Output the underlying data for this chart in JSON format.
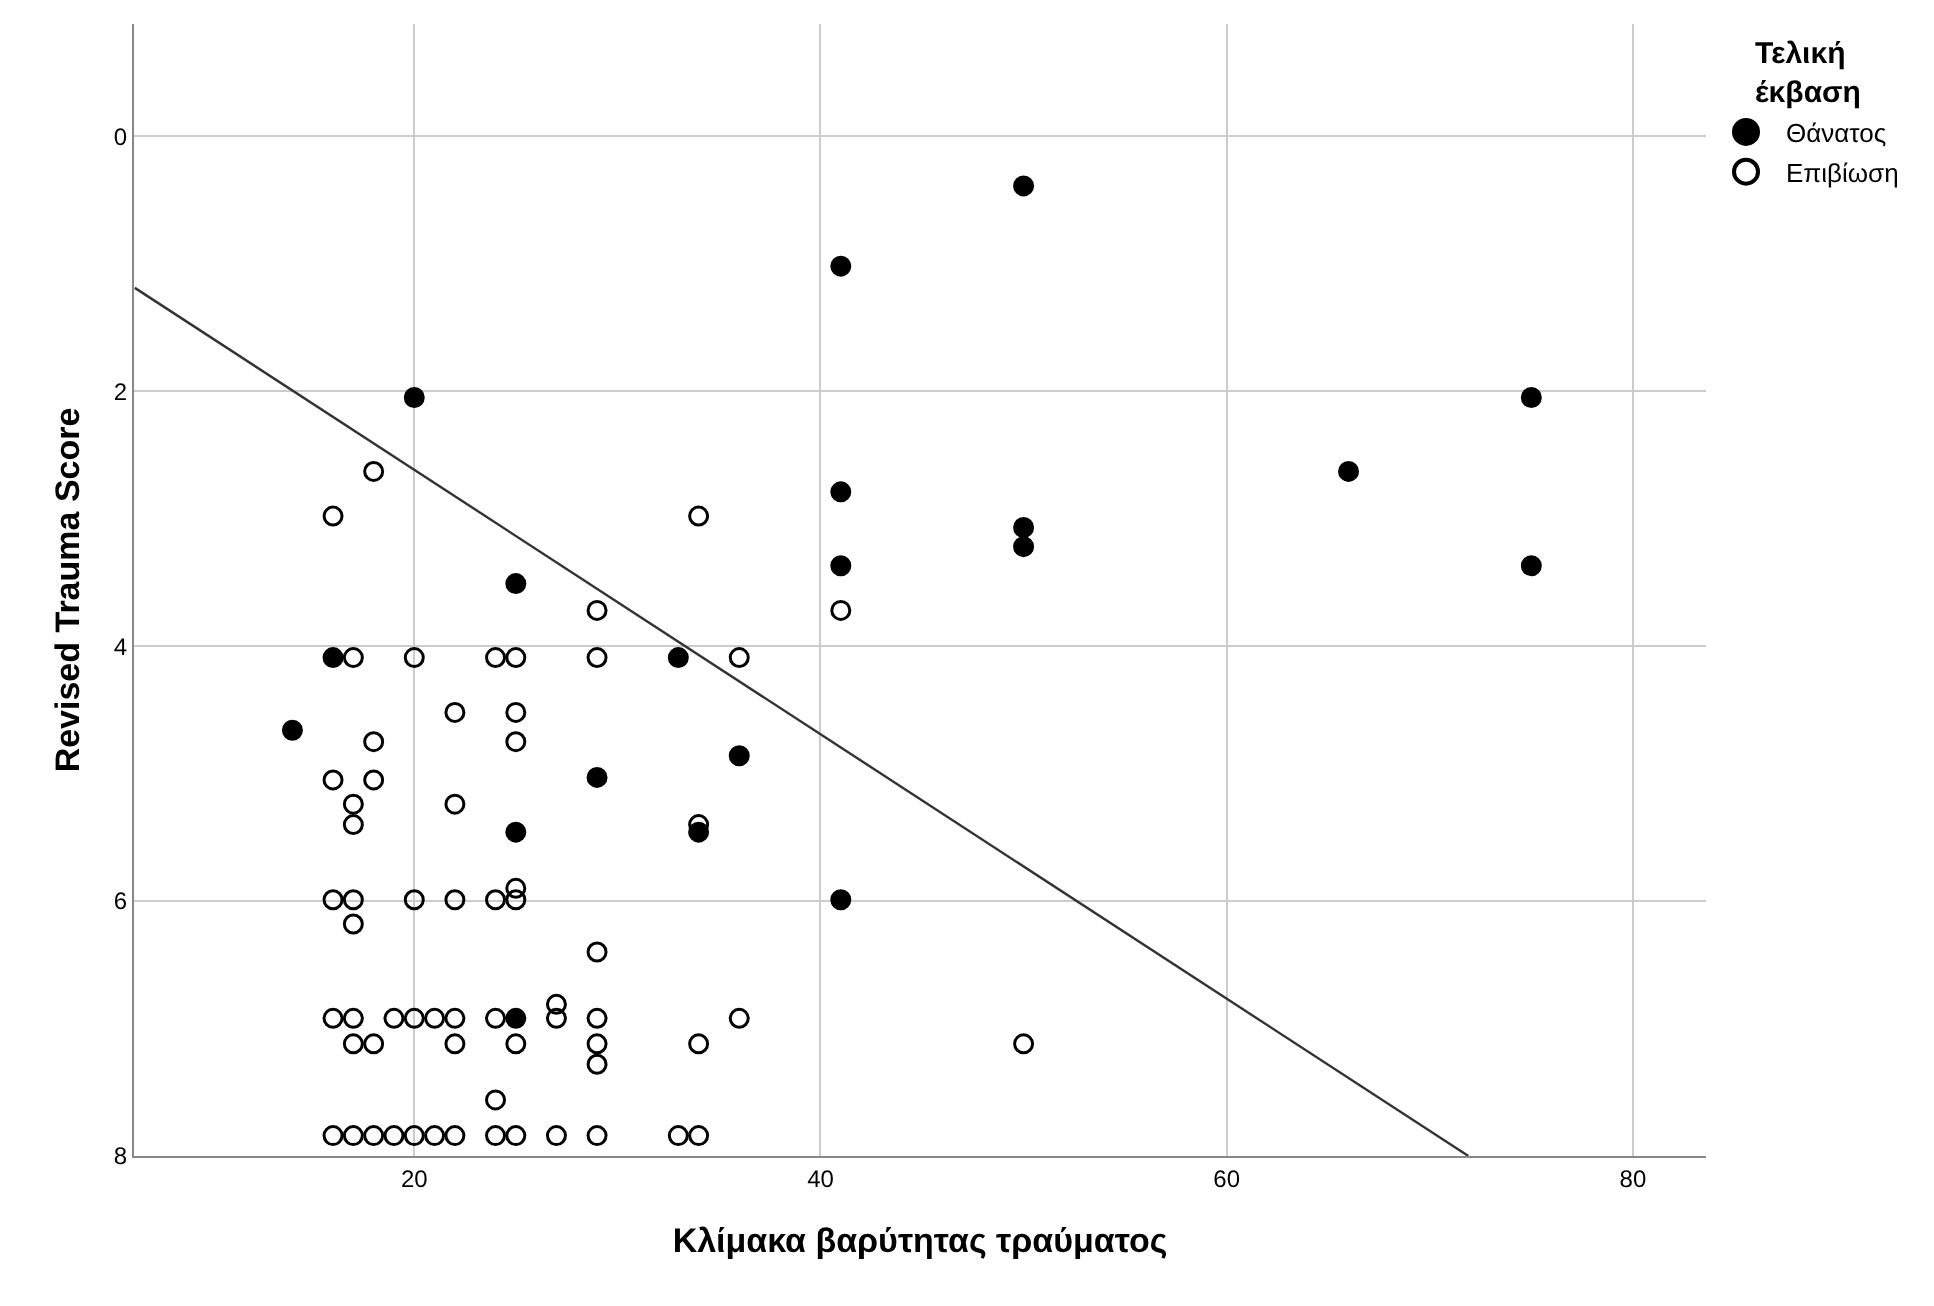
{
  "chart_data": {
    "type": "scatter",
    "xlabel": "Κλίμακα βαρύτητας τραύματος",
    "ylabel": "Revised Trauma Score",
    "legend_title": "Τελική έκβαση",
    "legend": "top right",
    "grid": true,
    "xlim": [
      6.2,
      83.6
    ],
    "xticks": [
      20,
      40,
      60,
      80
    ],
    "ylim": [
      8,
      -0.88
    ],
    "yticks": [
      0,
      2,
      4,
      6,
      8
    ],
    "series": [
      {
        "name": "Θάνατος",
        "color": "#000000",
        "marker": "circle",
        "x": [
          50,
          41,
          20,
          41,
          50,
          50,
          41,
          66,
          75,
          75,
          25,
          16,
          33,
          14,
          36,
          29,
          25,
          34,
          41,
          25
        ],
        "values": [
          0.39,
          1.02,
          2.05,
          2.79,
          3.07,
          3.22,
          3.37,
          2.63,
          2.05,
          3.37,
          3.51,
          4.09,
          4.09,
          4.66,
          4.86,
          5.03,
          5.46,
          5.46,
          5.99,
          6.92
        ]
      },
      {
        "name": "Επιβίωση",
        "color": "#000000",
        "marker": "circle-open",
        "x": [
          18,
          16,
          34,
          29,
          41,
          17,
          20,
          24,
          25,
          29,
          36,
          22,
          25,
          18,
          25,
          16,
          18,
          17,
          22,
          17,
          34,
          16,
          17,
          20,
          22,
          24,
          25,
          25,
          17,
          29,
          16,
          17,
          19,
          20,
          21,
          22,
          24,
          27,
          27,
          29,
          36,
          17,
          18,
          22,
          25,
          29,
          34,
          50,
          29,
          24,
          16,
          17,
          18,
          19,
          20,
          21,
          22,
          24,
          25,
          27,
          29,
          33,
          34
        ],
        "values": [
          2.63,
          2.98,
          2.98,
          3.72,
          3.72,
          4.09,
          4.09,
          4.09,
          4.09,
          4.09,
          4.09,
          4.52,
          4.52,
          4.75,
          4.75,
          5.05,
          5.05,
          5.24,
          5.24,
          5.4,
          5.4,
          5.99,
          5.99,
          5.99,
          5.99,
          5.99,
          5.99,
          5.9,
          6.18,
          6.4,
          6.92,
          6.92,
          6.92,
          6.92,
          6.92,
          6.92,
          6.92,
          6.92,
          6.81,
          6.92,
          6.92,
          7.12,
          7.12,
          7.12,
          7.12,
          7.12,
          7.12,
          7.12,
          7.28,
          7.56,
          7.84,
          7.84,
          7.84,
          7.84,
          7.84,
          7.84,
          7.84,
          7.84,
          7.84,
          7.84,
          7.84,
          7.84,
          7.84
        ]
      },
      {
        "type": "line",
        "color": "#333333",
        "line_style": "solid",
        "marker": "none",
        "x": [
          6.24,
          71.9
        ],
        "values": [
          1.19,
          8
        ]
      }
    ]
  }
}
